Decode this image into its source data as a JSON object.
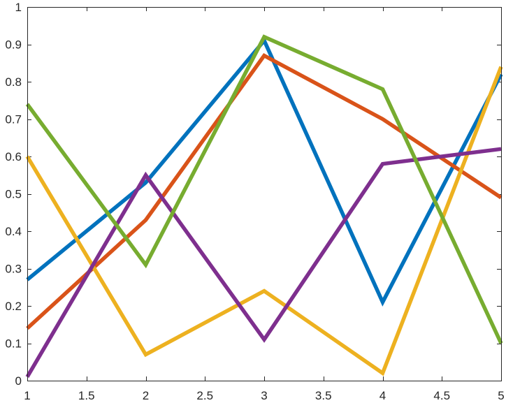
{
  "chart_data": {
    "type": "line",
    "title": "",
    "xlabel": "",
    "ylabel": "",
    "xlim": [
      1,
      5
    ],
    "ylim": [
      0,
      1
    ],
    "grid": false,
    "legend": "none",
    "x_ticks": [
      1,
      1.5,
      2,
      2.5,
      3,
      3.5,
      4,
      4.5,
      5
    ],
    "x_tick_labels": [
      "1",
      "1.5",
      "2",
      "2.5",
      "3",
      "3.5",
      "4",
      "4.5",
      "5"
    ],
    "y_ticks": [
      0,
      0.1,
      0.2,
      0.3,
      0.4,
      0.5,
      0.6,
      0.7,
      0.8,
      0.9,
      1
    ],
    "y_tick_labels": [
      "0",
      "0.1",
      "0.2",
      "0.3",
      "0.4",
      "0.5",
      "0.6",
      "0.7",
      "0.8",
      "0.9",
      "1"
    ],
    "x": [
      1,
      2,
      3,
      4,
      5
    ],
    "series": [
      {
        "color": "#0072BD",
        "values": [
          0.27,
          0.53,
          0.91,
          0.21,
          0.82
        ]
      },
      {
        "color": "#D95319",
        "values": [
          0.14,
          0.43,
          0.87,
          0.7,
          0.49
        ]
      },
      {
        "color": "#EDB120",
        "values": [
          0.6,
          0.07,
          0.24,
          0.02,
          0.84
        ]
      },
      {
        "color": "#7E2F8E",
        "values": [
          0.01,
          0.55,
          0.11,
          0.58,
          0.62
        ]
      },
      {
        "color": "#77AC30",
        "values": [
          0.74,
          0.31,
          0.92,
          0.78,
          0.1
        ]
      }
    ]
  }
}
